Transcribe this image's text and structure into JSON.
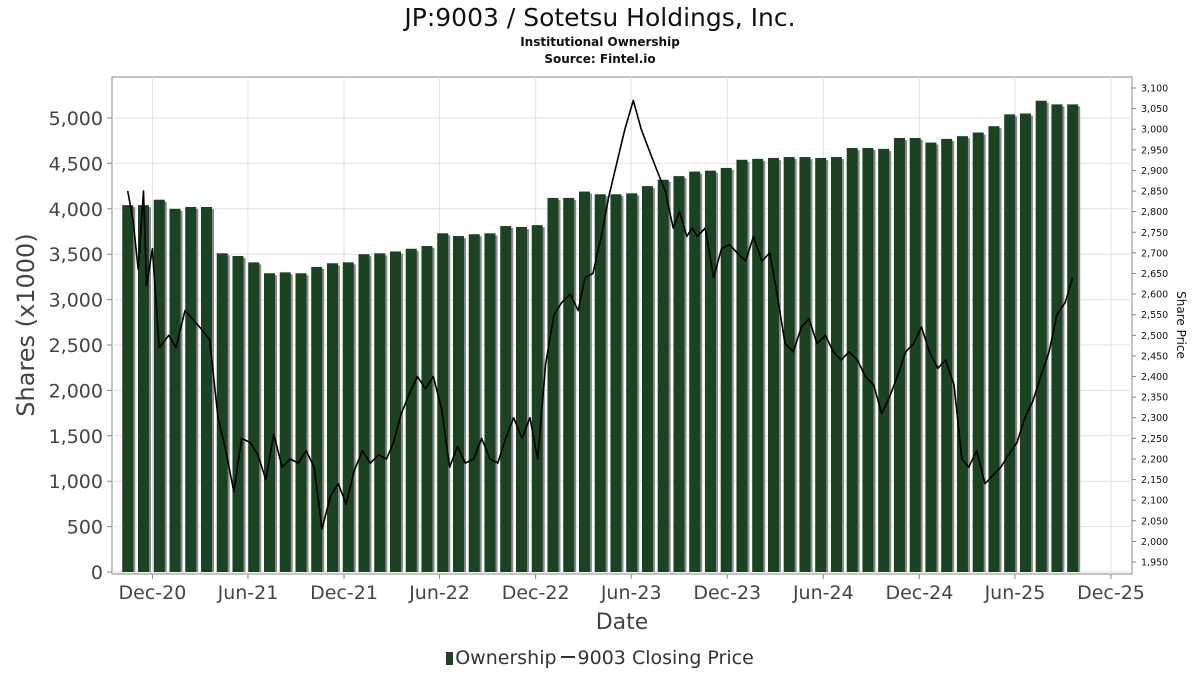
{
  "chart_data": {
    "type": "bar",
    "title": "JP:9003 / Sotetsu Holdings, Inc.",
    "subtitle": "Institutional Ownership",
    "source": "Source: Fintel.io",
    "xlabel": "Date",
    "ylabel": "Shares (x1000)",
    "y2label": "Share Price",
    "ylim": [
      0,
      5400
    ],
    "y2lim": [
      1925,
      3125
    ],
    "xlim": [
      "2020-09-15",
      "2026-01-10"
    ],
    "y_ticks": [
      "0",
      "500",
      "1,000",
      "1,500",
      "2,000",
      "2,500",
      "3,000",
      "3,500",
      "4,000",
      "4,500",
      "5,000"
    ],
    "y_tick_values": [
      0,
      500,
      1000,
      1500,
      2000,
      2500,
      3000,
      3500,
      4000,
      4500,
      5000
    ],
    "y2_ticks": [
      "1,950",
      "2,000",
      "2,050",
      "2,100",
      "2,150",
      "2,200",
      "2,250",
      "2,300",
      "2,350",
      "2,400",
      "2,450",
      "2,500",
      "2,550",
      "2,600",
      "2,650",
      "2,700",
      "2,750",
      "2,800",
      "2,850",
      "2,900",
      "2,950",
      "3,000",
      "3,050",
      "3,100"
    ],
    "y2_tick_values": [
      1950,
      2000,
      2050,
      2100,
      2150,
      2200,
      2250,
      2300,
      2350,
      2400,
      2450,
      2500,
      2550,
      2600,
      2650,
      2700,
      2750,
      2800,
      2850,
      2900,
      2950,
      3000,
      3050,
      3100
    ],
    "x_ticks": [
      "Dec-20",
      "Jun-21",
      "Dec-21",
      "Jun-22",
      "Dec-22",
      "Jun-23",
      "Dec-23",
      "Jun-24",
      "Dec-24",
      "Jun-25",
      "Dec-25"
    ],
    "x_tick_dates": [
      "2020-12-01",
      "2021-06-01",
      "2021-12-01",
      "2022-06-01",
      "2022-12-01",
      "2023-06-01",
      "2023-12-01",
      "2024-06-01",
      "2024-12-01",
      "2025-06-01",
      "2025-12-01"
    ],
    "grid": true,
    "legend_position": "bottom",
    "series": [
      {
        "name": "Ownership",
        "type": "bar",
        "color": "#1a4223",
        "x": [
          "2020-10-15",
          "2020-11-14",
          "2020-12-14",
          "2021-01-13",
          "2021-02-12",
          "2021-03-14",
          "2021-04-13",
          "2021-05-13",
          "2021-06-12",
          "2021-07-12",
          "2021-08-11",
          "2021-09-10",
          "2021-10-10",
          "2021-11-09",
          "2021-12-09",
          "2022-01-08",
          "2022-02-07",
          "2022-03-09",
          "2022-04-08",
          "2022-05-08",
          "2022-06-07",
          "2022-07-07",
          "2022-08-06",
          "2022-09-05",
          "2022-10-05",
          "2022-11-04",
          "2022-12-04",
          "2023-01-03",
          "2023-02-02",
          "2023-03-04",
          "2023-04-03",
          "2023-05-03",
          "2023-06-02",
          "2023-07-02",
          "2023-08-01",
          "2023-08-31",
          "2023-09-30",
          "2023-10-30",
          "2023-11-29",
          "2023-12-29",
          "2024-01-28",
          "2024-02-27",
          "2024-03-28",
          "2024-04-27",
          "2024-05-27",
          "2024-06-26",
          "2024-07-26",
          "2024-08-25",
          "2024-09-24",
          "2024-10-24",
          "2024-11-23",
          "2024-12-23",
          "2025-01-22",
          "2025-02-21",
          "2025-03-23",
          "2025-04-22",
          "2025-05-22",
          "2025-06-21",
          "2025-07-21",
          "2025-08-20",
          "2025-09-19"
        ],
        "values": [
          4040,
          4040,
          4100,
          4000,
          4020,
          4020,
          3510,
          3480,
          3410,
          3290,
          3300,
          3290,
          3360,
          3400,
          3410,
          3500,
          3510,
          3530,
          3560,
          3590,
          3730,
          3700,
          3720,
          3730,
          3810,
          3800,
          3820,
          4120,
          4120,
          4190,
          4160,
          4160,
          4170,
          4250,
          4320,
          4360,
          4410,
          4420,
          4450,
          4540,
          4550,
          4560,
          4570,
          4570,
          4560,
          4570,
          4670,
          4670,
          4660,
          4780,
          4780,
          4730,
          4770,
          4800,
          4840,
          4910,
          5040,
          5050,
          5190,
          5150,
          5150
        ]
      },
      {
        "name": "9003 Closing Price",
        "type": "line",
        "color": "#000000",
        "x": [
          "2020-10-15",
          "2020-10-25",
          "2020-11-04",
          "2020-11-14",
          "2020-11-20",
          "2020-12-01",
          "2020-12-14",
          "2021-01-01",
          "2021-01-15",
          "2021-02-01",
          "2021-02-15",
          "2021-03-01",
          "2021-03-20",
          "2021-04-05",
          "2021-04-20",
          "2021-05-05",
          "2021-05-20",
          "2021-06-05",
          "2021-06-20",
          "2021-07-05",
          "2021-07-20",
          "2021-08-05",
          "2021-08-20",
          "2021-09-05",
          "2021-09-20",
          "2021-10-05",
          "2021-10-20",
          "2021-11-05",
          "2021-11-20",
          "2021-12-05",
          "2021-12-20",
          "2022-01-05",
          "2022-01-20",
          "2022-02-05",
          "2022-02-20",
          "2022-03-05",
          "2022-03-20",
          "2022-04-05",
          "2022-04-20",
          "2022-05-05",
          "2022-05-20",
          "2022-06-05",
          "2022-06-20",
          "2022-07-05",
          "2022-07-20",
          "2022-08-05",
          "2022-08-20",
          "2022-09-05",
          "2022-09-20",
          "2022-10-05",
          "2022-10-20",
          "2022-11-05",
          "2022-11-20",
          "2022-12-05",
          "2022-12-20",
          "2023-01-05",
          "2023-01-20",
          "2023-02-05",
          "2023-02-20",
          "2023-03-05",
          "2023-03-20",
          "2023-04-05",
          "2023-04-20",
          "2023-05-05",
          "2023-05-20",
          "2023-06-05",
          "2023-06-20",
          "2023-07-05",
          "2023-07-20",
          "2023-08-05",
          "2023-08-20",
          "2023-09-01",
          "2023-09-15",
          "2023-09-25",
          "2023-10-05",
          "2023-10-20",
          "2023-11-05",
          "2023-11-20",
          "2023-12-05",
          "2023-12-20",
          "2024-01-05",
          "2024-01-20",
          "2024-02-05",
          "2024-02-20",
          "2024-03-05",
          "2024-03-20",
          "2024-04-05",
          "2024-04-20",
          "2024-05-05",
          "2024-05-20",
          "2024-06-05",
          "2024-06-20",
          "2024-07-05",
          "2024-07-20",
          "2024-08-05",
          "2024-08-20",
          "2024-09-05",
          "2024-09-20",
          "2024-10-05",
          "2024-10-20",
          "2024-11-05",
          "2024-11-20",
          "2024-12-05",
          "2024-12-20",
          "2025-01-05",
          "2025-01-20",
          "2025-02-05",
          "2025-02-20",
          "2025-03-05",
          "2025-03-20",
          "2025-04-05",
          "2025-04-20",
          "2025-05-05",
          "2025-05-20",
          "2025-06-05",
          "2025-06-20",
          "2025-07-05",
          "2025-07-20",
          "2025-08-05",
          "2025-08-20",
          "2025-09-05",
          "2025-09-19"
        ],
        "values": [
          2850,
          2780,
          2660,
          2850,
          2620,
          2710,
          2470,
          2500,
          2470,
          2560,
          2540,
          2520,
          2490,
          2300,
          2220,
          2120,
          2250,
          2240,
          2210,
          2150,
          2260,
          2180,
          2200,
          2190,
          2220,
          2180,
          2030,
          2110,
          2140,
          2090,
          2170,
          2220,
          2190,
          2210,
          2200,
          2240,
          2310,
          2360,
          2400,
          2370,
          2400,
          2320,
          2180,
          2230,
          2190,
          2200,
          2250,
          2200,
          2190,
          2250,
          2300,
          2250,
          2300,
          2200,
          2430,
          2550,
          2580,
          2600,
          2560,
          2640,
          2650,
          2740,
          2840,
          2920,
          3000,
          3070,
          3000,
          2950,
          2900,
          2850,
          2760,
          2800,
          2740,
          2760,
          2740,
          2760,
          2640,
          2710,
          2720,
          2700,
          2680,
          2740,
          2680,
          2700,
          2600,
          2480,
          2460,
          2520,
          2540,
          2480,
          2500,
          2460,
          2440,
          2460,
          2440,
          2400,
          2380,
          2310,
          2350,
          2400,
          2460,
          2480,
          2520,
          2460,
          2420,
          2440,
          2380,
          2200,
          2180,
          2220,
          2140,
          2160,
          2180,
          2210,
          2240,
          2300,
          2340,
          2400,
          2460,
          2550,
          2580,
          2640
        ]
      }
    ]
  }
}
